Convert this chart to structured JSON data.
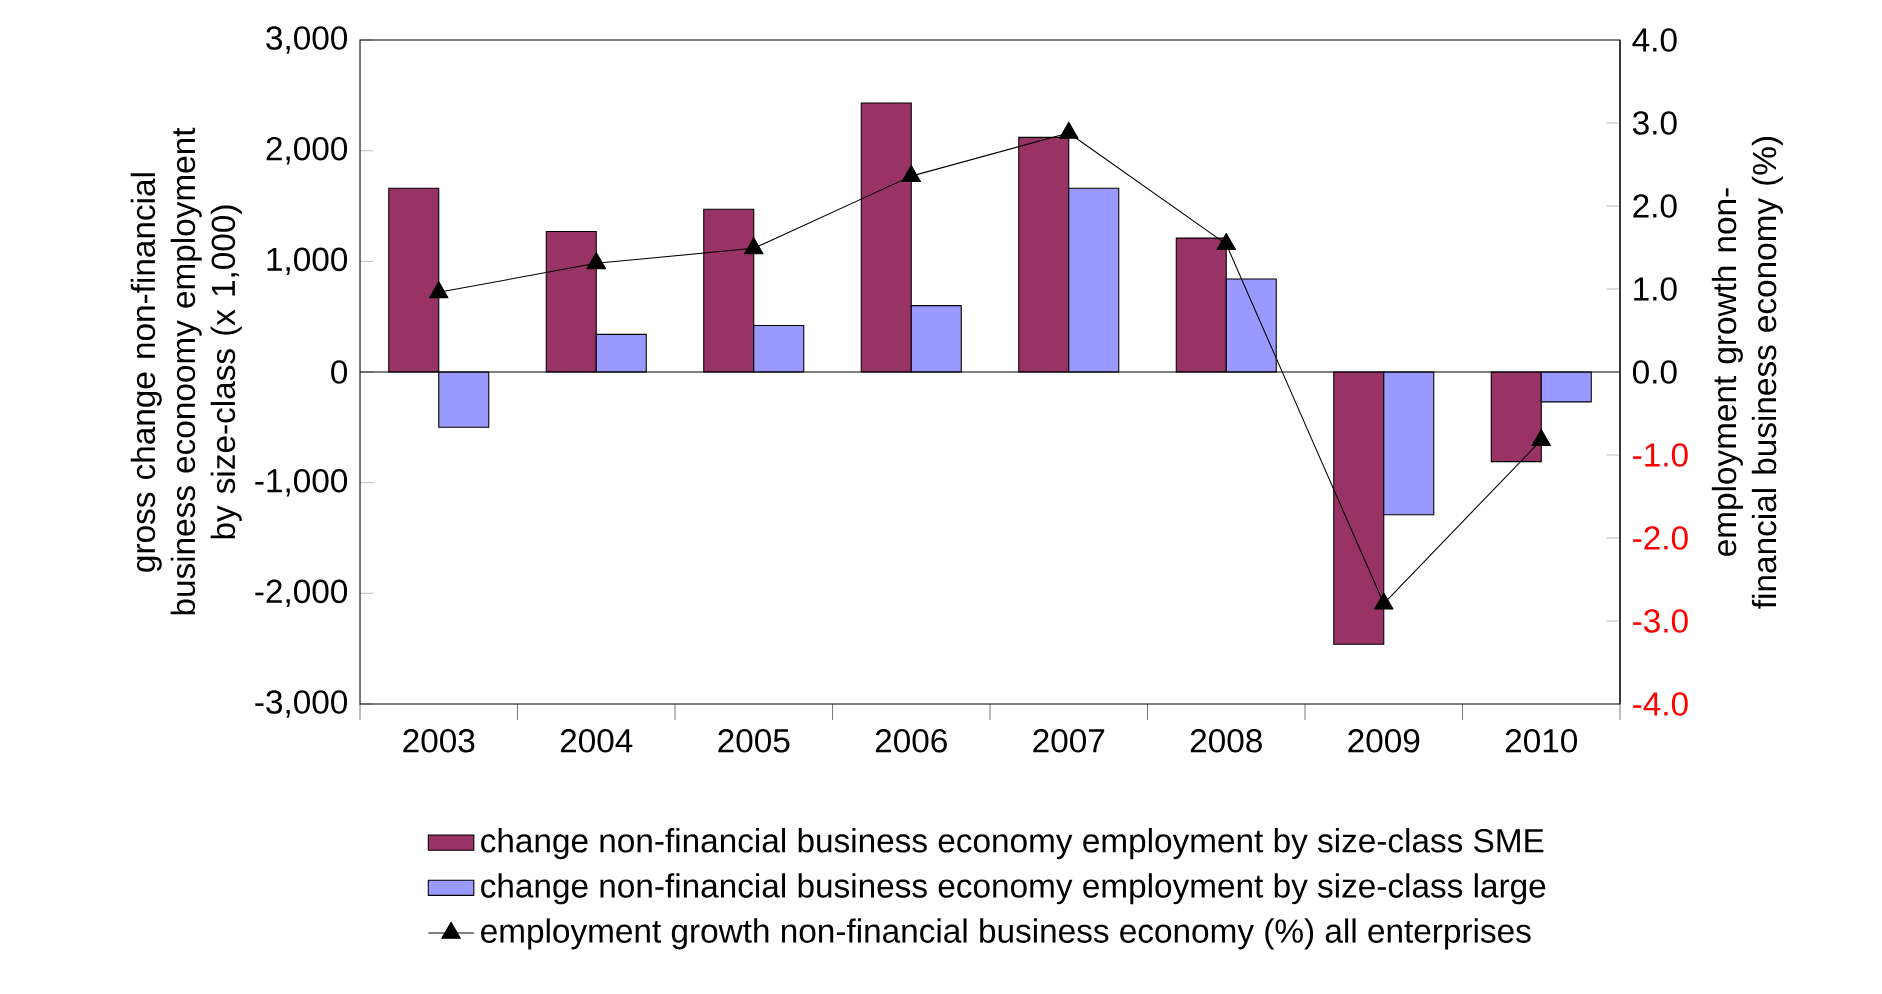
{
  "chart_data": {
    "type": "bar",
    "ylabel": "gross change non-financial business econoomy employment by size-class (x 1,000)",
    "y2label": "employment growth non-financial business economy (%)",
    "categories": [
      "2003",
      "2004",
      "2005",
      "2006",
      "2007",
      "2008",
      "2009",
      "2010"
    ],
    "series": [
      {
        "name": "change non-financial business economy employment by size-class SME",
        "color": "#993366",
        "values": [
          1660,
          1270,
          1470,
          2430,
          2120,
          1210,
          -2460,
          -810
        ]
      },
      {
        "name": "change non-financial business economy employment by size-class large",
        "color": "#9999ff",
        "values": [
          -500,
          340,
          420,
          600,
          1660,
          840,
          -1290,
          -270
        ]
      },
      {
        "name": "employment growth non-financial business economy (%) all enterprises",
        "type": "line",
        "axis": "y2",
        "color": "#000000",
        "marker": "triangle",
        "line_style": "solid",
        "values": [
          0.96,
          1.31,
          1.49,
          2.36,
          2.88,
          1.54,
          -2.79,
          -0.82
        ]
      }
    ],
    "ylim": [
      -3000,
      3000
    ],
    "yticks": [
      {
        "value": -3000,
        "label": "-3,000"
      },
      {
        "value": -2000,
        "label": "-2,000"
      },
      {
        "value": -1000,
        "label": "-1,000"
      },
      0,
      {
        "value": 1000,
        "label": "1,000"
      },
      {
        "value": 2000,
        "label": "2,000"
      },
      {
        "value": 3000,
        "label": "3,000"
      }
    ],
    "y2lim": [
      -4,
      4
    ],
    "y2ticks": [
      {
        "value": -4,
        "label": "-4.0"
      },
      {
        "value": -3,
        "label": "-3.0"
      },
      {
        "value": -2,
        "label": "-2.0"
      },
      {
        "value": -1,
        "label": "-1.0"
      },
      {
        "value": 0,
        "label": "0.0"
      },
      {
        "value": 1,
        "label": "1.0"
      },
      {
        "value": 2,
        "label": "2.0"
      },
      {
        "value": 3,
        "label": "3.0"
      },
      {
        "value": 4,
        "label": "4.0"
      }
    ],
    "legend": "bottom"
  }
}
